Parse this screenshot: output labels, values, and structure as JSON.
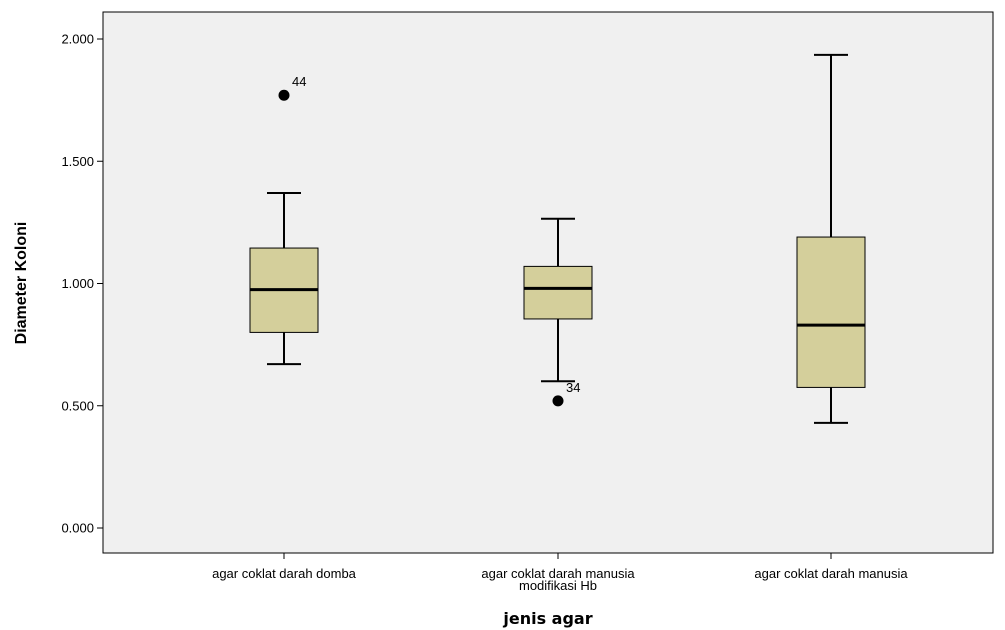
{
  "chart_data": {
    "type": "boxplot",
    "xlabel": "jenis agar",
    "ylabel": "Diameter Koloni",
    "ylim": [
      0.0,
      2.0
    ],
    "yticks": [
      {
        "value": 0.0,
        "label": "0.000"
      },
      {
        "value": 0.5,
        "label": "0.500"
      },
      {
        "value": 1.0,
        "label": "1.000"
      },
      {
        "value": 1.5,
        "label": "1.500"
      },
      {
        "value": 2.0,
        "label": "2.000"
      }
    ],
    "grid": false,
    "box_color": "#d4cf9b",
    "plot_background": "#f0f0f0",
    "categories": [
      {
        "label_lines": [
          "agar coklat darah domba"
        ],
        "whisker_low": 0.67,
        "q1": 0.8,
        "median": 0.975,
        "q3": 1.145,
        "whisker_high": 1.37,
        "outliers": [
          {
            "value": 1.77,
            "label": "44"
          }
        ]
      },
      {
        "label_lines": [
          "agar coklat darah manusia",
          "modifikasi Hb"
        ],
        "whisker_low": 0.6,
        "q1": 0.855,
        "median": 0.98,
        "q3": 1.07,
        "whisker_high": 1.265,
        "outliers": [
          {
            "value": 0.52,
            "label": "34"
          }
        ]
      },
      {
        "label_lines": [
          "agar coklat darah manusia"
        ],
        "whisker_low": 0.43,
        "q1": 0.575,
        "median": 0.83,
        "q3": 1.19,
        "whisker_high": 1.935,
        "outliers": []
      }
    ]
  }
}
